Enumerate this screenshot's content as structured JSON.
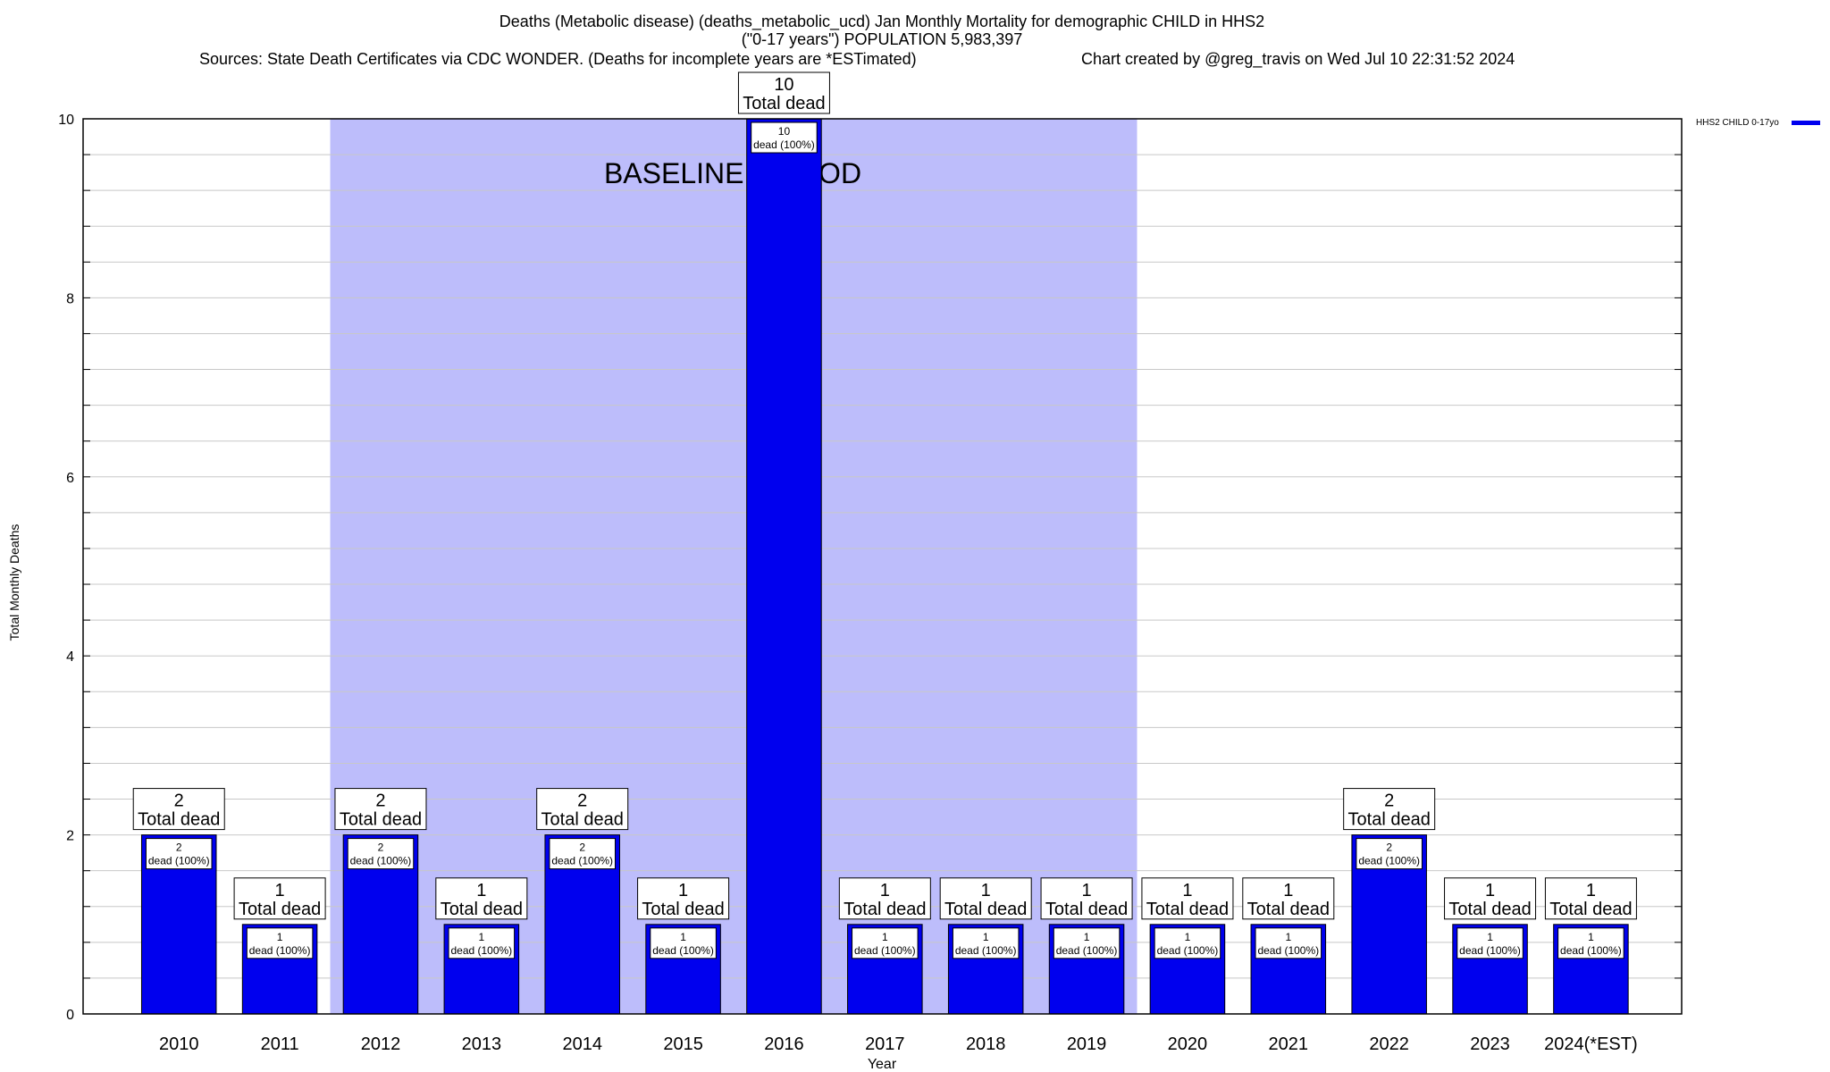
{
  "chart_data": {
    "type": "bar",
    "title_lines": [
      "Deaths (Metabolic disease) (deaths_metabolic_ucd) Jan Monthly Mortality for demographic CHILD in HHS2",
      "(\"0-17 years\") POPULATION 5,983,397"
    ],
    "sources": "Sources: State Death Certificates via CDC WONDER. (Deaths for incomplete years are *ESTimated)",
    "credit": "Chart created by @greg_travis on Wed Jul 10 22:31:52 2024",
    "xlabel": "Year",
    "ylabel": "Total Monthly Deaths",
    "ylim": [
      0,
      10
    ],
    "y_ticks": [
      0,
      2,
      4,
      6,
      8,
      10
    ],
    "minor_step": 0.4,
    "grid": true,
    "legend": {
      "label": "HHS2 CHILD 0-17yo",
      "placement": "top-right outside"
    },
    "baseline": {
      "label": "BASELINE PERIOD",
      "from": "2012",
      "to": "2019"
    },
    "categories": [
      "2010",
      "2011",
      "2012",
      "2013",
      "2014",
      "2015",
      "2016",
      "2017",
      "2018",
      "2019",
      "2020",
      "2021",
      "2022",
      "2023",
      "2024(*EST)"
    ],
    "series": [
      {
        "name": "HHS2 CHILD 0-17yo",
        "values": [
          2,
          1,
          2,
          1,
          2,
          1,
          10,
          1,
          1,
          1,
          1,
          1,
          2,
          1,
          1
        ]
      }
    ],
    "total_label_text": "Total dead",
    "inner_label_text": "dead (100%)",
    "colors": {
      "bar": "#0000ee",
      "baseline_band": "#bdbdfb",
      "grid": "#c8c8c8"
    }
  }
}
